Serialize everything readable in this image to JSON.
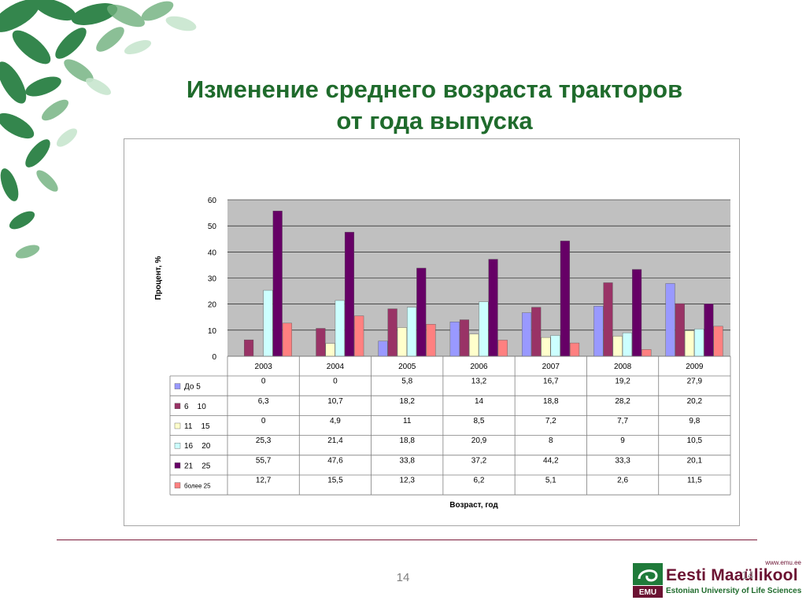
{
  "slide": {
    "title_line1": "Изменение среднего возраста тракторов",
    "title_line2": "от года выпуска",
    "page_number": "14",
    "logo": {
      "url": "www.emu.ee",
      "name": "Eesti Maaülikool",
      "subtitle": "Estonian University of Life Sciences",
      "badge": "EMU"
    }
  },
  "chart_data": {
    "type": "bar",
    "title": "",
    "xlabel": "Возраст, год",
    "ylabel": "Процент, %",
    "ylim": [
      0,
      60
    ],
    "yticks": [
      0,
      10,
      20,
      30,
      40,
      50,
      60
    ],
    "grid": true,
    "categories": [
      "2003",
      "2004",
      "2005",
      "2006",
      "2007",
      "2008",
      "2009"
    ],
    "series": [
      {
        "name": "До 5",
        "color": "#9999ff",
        "values": [
          0,
          0,
          5.8,
          13.2,
          16.7,
          19.2,
          27.9
        ],
        "labels": [
          "0",
          "0",
          "5,8",
          "13,2",
          "16,7",
          "19,2",
          "27,9"
        ]
      },
      {
        "name": "6    10",
        "color": "#993366",
        "values": [
          6.3,
          10.7,
          18.2,
          14,
          18.8,
          28.2,
          20.2
        ],
        "labels": [
          "6,3",
          "10,7",
          "18,2",
          "14",
          "18,8",
          "28,2",
          "20,2"
        ]
      },
      {
        "name": "11    15",
        "color": "#ffffcc",
        "values": [
          0,
          4.9,
          11,
          8.5,
          7.2,
          7.7,
          9.8
        ],
        "labels": [
          "0",
          "4,9",
          "11",
          "8,5",
          "7,2",
          "7,7",
          "9,8"
        ]
      },
      {
        "name": "16    20",
        "color": "#ccffff",
        "values": [
          25.3,
          21.4,
          18.8,
          20.9,
          8,
          9,
          10.5
        ],
        "labels": [
          "25,3",
          "21,4",
          "18,8",
          "20,9",
          "8",
          "9",
          "10,5"
        ]
      },
      {
        "name": "21    25",
        "color": "#660066",
        "values": [
          55.7,
          47.6,
          33.8,
          37.2,
          44.2,
          33.3,
          20.1
        ],
        "labels": [
          "55,7",
          "47,6",
          "33,8",
          "37,2",
          "44,2",
          "33,3",
          "20,1"
        ]
      },
      {
        "name": "более 25",
        "color": "#ff8080",
        "values": [
          12.7,
          15.5,
          12.3,
          6.2,
          5.1,
          2.6,
          11.5
        ],
        "labels": [
          "12,7",
          "15,5",
          "12,3",
          "6,2",
          "5,1",
          "2,6",
          "11,5"
        ]
      }
    ],
    "plot_background": "#c0c0c0",
    "legend_placement": "data-table-left"
  }
}
